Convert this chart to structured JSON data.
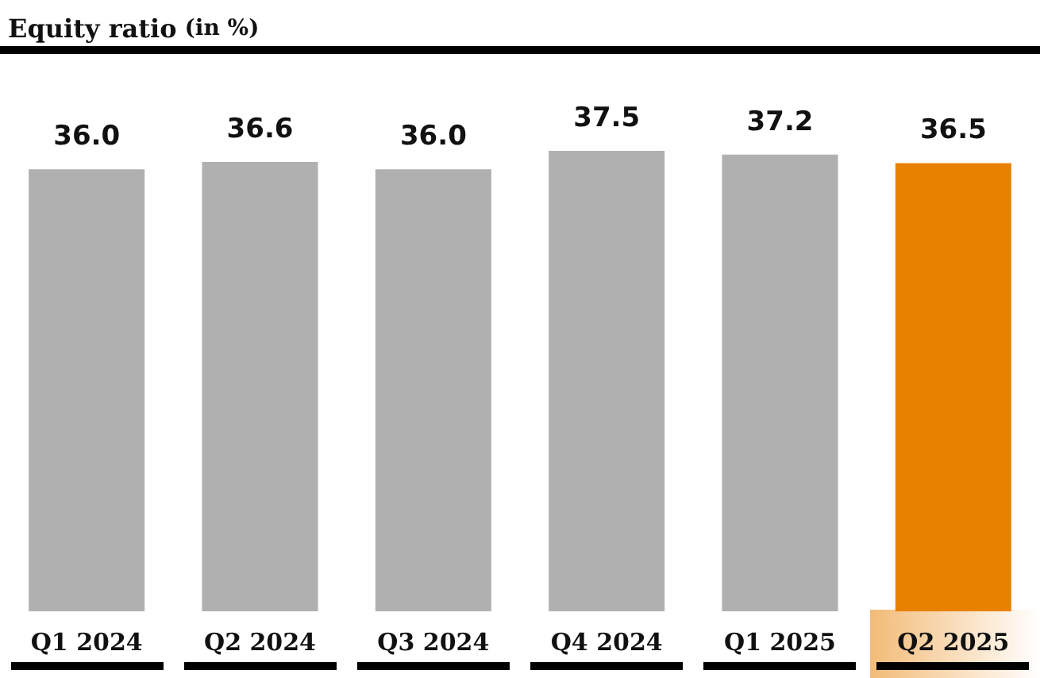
{
  "chart_data": {
    "type": "bar",
    "title": "Equity ratio",
    "subtitle": "(in %)",
    "categories": [
      "Q1 2024",
      "Q2 2024",
      "Q3 2024",
      "Q4 2024",
      "Q1 2025",
      "Q2 2025"
    ],
    "values": [
      36.0,
      36.6,
      36.0,
      37.5,
      37.2,
      36.5
    ],
    "value_labels": [
      "36.0",
      "36.6",
      "36.0",
      "37.5",
      "37.2",
      "36.5"
    ],
    "colors": [
      "#b0b0b0",
      "#b0b0b0",
      "#b0b0b0",
      "#b0b0b0",
      "#b0b0b0",
      "#e88000"
    ],
    "grid": false
  }
}
